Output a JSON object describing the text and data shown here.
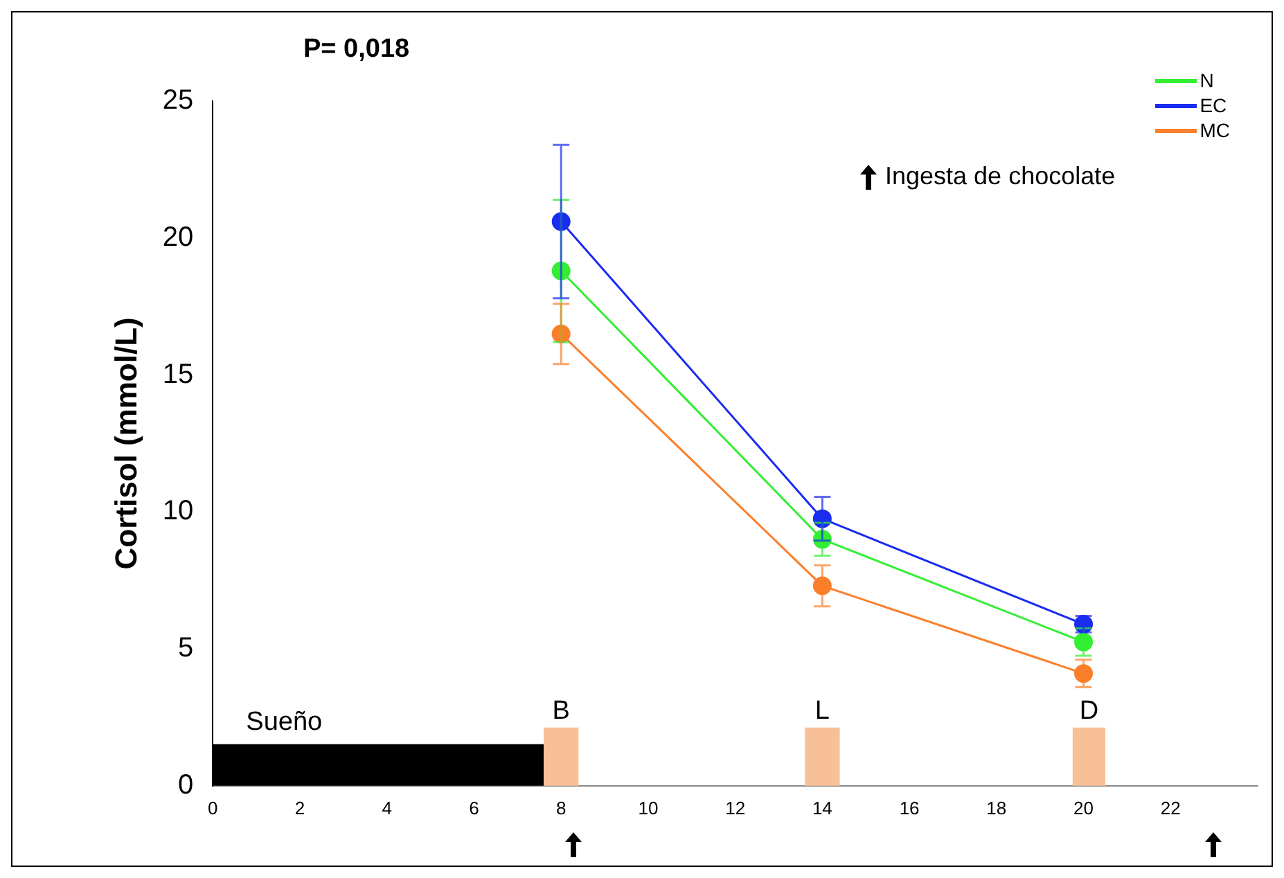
{
  "chart_data": {
    "type": "line",
    "ylabel": "Cortisol (mmol/L)",
    "annotations": [
      "P= 0,018",
      "Ingesta de chocolate"
    ],
    "x": [
      8,
      14,
      20
    ],
    "series": [
      {
        "name": "N",
        "color": "#33ee33",
        "values": [
          18.8,
          9.0,
          5.25
        ],
        "errors": [
          2.6,
          0.6,
          0.5
        ]
      },
      {
        "name": "EC",
        "color": "#1a2cf0",
        "values": [
          20.6,
          9.75,
          5.9
        ],
        "errors": [
          2.8,
          0.8,
          0.3
        ]
      },
      {
        "name": "MC",
        "color": "#fb7f2a",
        "values": [
          16.5,
          7.3,
          4.1
        ],
        "errors": [
          1.1,
          0.75,
          0.5
        ]
      }
    ],
    "xlim": [
      0,
      24
    ],
    "xticks": [
      0,
      2,
      4,
      6,
      8,
      10,
      12,
      14,
      16,
      18,
      20,
      22
    ],
    "ylim": [
      0,
      25
    ],
    "yticks": [
      0,
      5,
      10,
      15,
      20,
      25
    ],
    "bands": [
      {
        "axis": "x",
        "from": 0,
        "to": 7.6,
        "label": "Sueño",
        "color": "#000000"
      },
      {
        "axis": "x",
        "from": 7.6,
        "to": 8.4,
        "label": "B",
        "color": "#f7c096"
      },
      {
        "axis": "x",
        "from": 13.6,
        "to": 14.4,
        "label": "L",
        "color": "#f7c096"
      },
      {
        "axis": "x",
        "from": 19.75,
        "to": 20.5,
        "label": "D",
        "color": "#f7c096"
      }
    ],
    "grid": false,
    "legend": "top right",
    "marker": "circle",
    "line_style": "solid"
  }
}
